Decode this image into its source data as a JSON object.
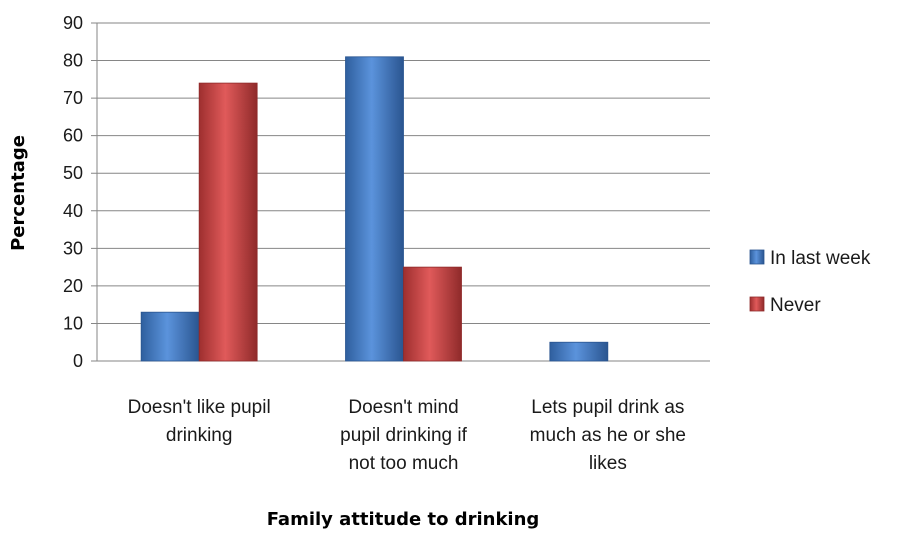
{
  "chart_data": {
    "type": "bar",
    "title": "",
    "xlabel": "Family attitude to drinking",
    "ylabel": "Percentage",
    "ylim": [
      0,
      90
    ],
    "yticks": [
      0,
      10,
      20,
      30,
      40,
      50,
      60,
      70,
      80,
      90
    ],
    "grid": true,
    "legend_position": "right",
    "categories": [
      [
        "Doesn't like pupil",
        "drinking"
      ],
      [
        "Doesn't mind",
        "pupil drinking if",
        "not too much"
      ],
      [
        "Lets pupil drink as",
        "much as he or she",
        "likes"
      ]
    ],
    "series": [
      {
        "name": "In last week",
        "color": "#3c78c8",
        "values": [
          13,
          81,
          5
        ]
      },
      {
        "name": "Never",
        "color": "#c83c3c",
        "values": [
          74,
          25,
          0
        ]
      }
    ]
  }
}
